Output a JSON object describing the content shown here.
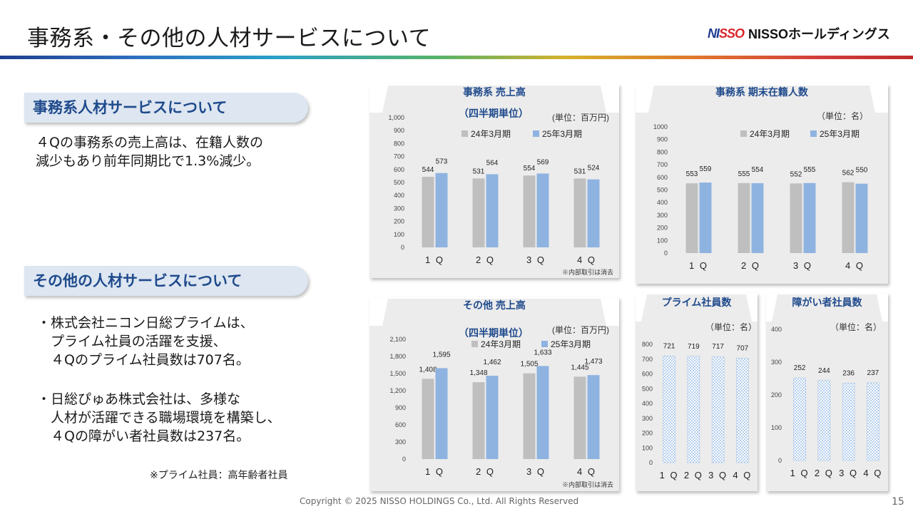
{
  "header": {
    "title": "事務系・その他の人材サービスについて",
    "logo_mark_a": "NI",
    "logo_mark_b": "SSO",
    "logo_text": "NISSOホールディングス"
  },
  "left": {
    "section1_title": "事務系人材サービスについて",
    "section1_body": "４Qの事務系の売上高は、在籍人数の\n減少もあり前年同期比で1.3%減少。",
    "section2_title": "その他の人材サービスについて",
    "section2_body_a": "・株式会社ニコン日総プライムは、\n　プライム社員の活躍を支援、\n　４Qのプライム社員数は707名。",
    "section2_body_b": "・日総ぴゅあ株式会社は、多様な\n　人材が活躍できる職場環境を構築し、\n　４Qの障がい者社員数は237名。",
    "note": "※プライム社員：高年齢者社員"
  },
  "footer": {
    "copyright": "Copyright © 2025 NISSO HOLDINGS Co., Ltd. All Rights Reserved",
    "page": "15"
  },
  "colors": {
    "bar24": "#bfbfbf",
    "bar25": "#8fb3e0",
    "title_blue": "#1f4a8c",
    "hatch": "#9ec0e8"
  },
  "chart_data": [
    {
      "id": "office_sales",
      "type": "bar",
      "title": "事務系 売上高",
      "subtitle": "（四半期単位）",
      "unit": "(単位：百万円)",
      "note": "※内部取引は消去",
      "categories": [
        "1Q",
        "2Q",
        "3Q",
        "4Q"
      ],
      "series": [
        {
          "name": "24年3月期",
          "values": [
            544,
            531,
            554,
            531
          ]
        },
        {
          "name": "25年3月期",
          "values": [
            573,
            564,
            569,
            524
          ]
        }
      ],
      "ylim": [
        0,
        1000
      ],
      "yticks": [
        "0",
        "100",
        "200",
        "300",
        "400",
        "500",
        "600",
        "700",
        "800",
        "900",
        "1,000"
      ]
    },
    {
      "id": "office_staff",
      "type": "bar",
      "title": "事務系 期末在籍人数",
      "unit": "（単位：名）",
      "categories": [
        "1Q",
        "2Q",
        "3Q",
        "4Q"
      ],
      "series": [
        {
          "name": "24年3月期",
          "values": [
            553,
            555,
            552,
            562
          ]
        },
        {
          "name": "25年3月期",
          "values": [
            559,
            554,
            555,
            550
          ]
        }
      ],
      "ylim": [
        0,
        1000
      ],
      "yticks": [
        "0",
        "100",
        "200",
        "300",
        "400",
        "500",
        "600",
        "700",
        "800",
        "900",
        "1000"
      ]
    },
    {
      "id": "other_sales",
      "type": "bar",
      "title": "その他 売上高",
      "subtitle": "（四半期単位）",
      "unit": "(単位：百万円)",
      "note": "※内部取引は消去",
      "categories": [
        "1Q",
        "2Q",
        "3Q",
        "4Q"
      ],
      "series": [
        {
          "name": "24年3月期",
          "values": [
            1408,
            1348,
            1505,
            1445
          ]
        },
        {
          "name": "25年3月期",
          "values": [
            1595,
            1462,
            1633,
            1473
          ]
        }
      ],
      "ylim": [
        0,
        2100
      ],
      "yticks": [
        "0",
        "300",
        "600",
        "900",
        "1,200",
        "1,500",
        "1,800",
        "2,100"
      ]
    },
    {
      "id": "prime_staff",
      "type": "bar",
      "title": "プライム社員数",
      "unit": "（単位：名）",
      "categories": [
        "1Q",
        "2Q",
        "3Q",
        "4Q"
      ],
      "series": [
        {
          "values": [
            721,
            719,
            717,
            707
          ]
        }
      ],
      "ylim": [
        0,
        800
      ],
      "yticks": [
        "0",
        "100",
        "200",
        "300",
        "400",
        "500",
        "600",
        "700",
        "800"
      ]
    },
    {
      "id": "disabled_staff",
      "type": "bar",
      "title": "障がい者社員数",
      "unit": "（単位：名）",
      "categories": [
        "1Q",
        "2Q",
        "3Q",
        "4Q"
      ],
      "series": [
        {
          "values": [
            252,
            244,
            236,
            237
          ]
        }
      ],
      "ylim": [
        0,
        400
      ],
      "yticks": [
        "0",
        "100",
        "200",
        "300",
        "400"
      ]
    }
  ]
}
